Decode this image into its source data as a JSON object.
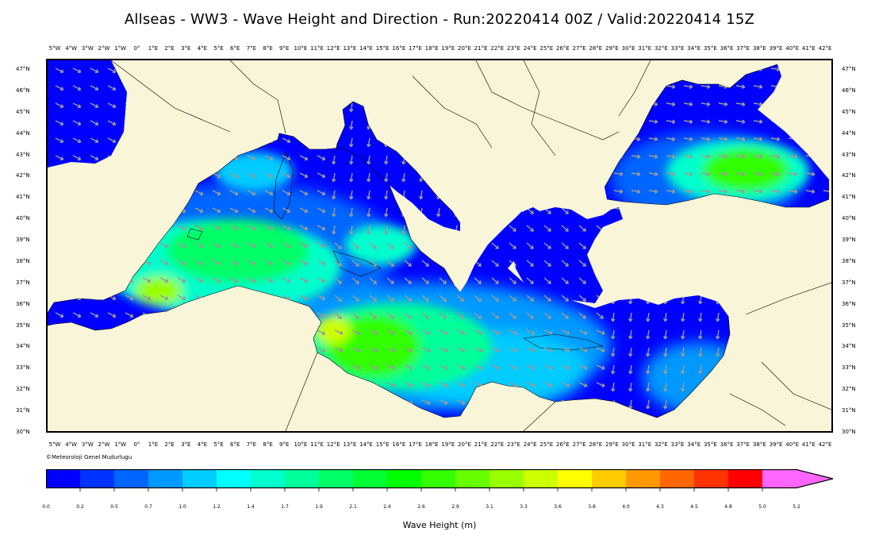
{
  "title": "Allseas - WW3 - Wave Height and Direction - Run:20220414 00Z / Valid:20220414 15Z",
  "credit": "©Meteoroloji Genel Mudurlugu",
  "lon_labels": [
    "5°W",
    "4°W",
    "3°W",
    "2°W",
    "1°W",
    "0°",
    "1°E",
    "2°E",
    "3°E",
    "4°E",
    "5°E",
    "6°E",
    "7°E",
    "8°E",
    "9°E",
    "10°E",
    "11°E",
    "12°E",
    "13°E",
    "14°E",
    "15°E",
    "16°E",
    "17°E",
    "18°E",
    "19°E",
    "20°E",
    "21°E",
    "22°E",
    "23°E",
    "24°E",
    "25°E",
    "26°E",
    "27°E",
    "28°E",
    "29°E",
    "30°E",
    "31°E",
    "32°E",
    "33°E",
    "34°E",
    "35°E",
    "36°E",
    "37°E",
    "38°E",
    "39°E",
    "40°E",
    "41°E",
    "42°E"
  ],
  "lat_labels": [
    "47°N",
    "46°N",
    "45°N",
    "44°N",
    "43°N",
    "42°N",
    "41°N",
    "40°N",
    "39°N",
    "38°N",
    "37°N",
    "36°N",
    "35°N",
    "34°N",
    "33°N",
    "32°N",
    "31°N",
    "30°N"
  ],
  "colorbar": {
    "title": "Wave Height (m)",
    "labels": [
      "0.0",
      "0.2",
      "0.5",
      "0.7",
      "1.0",
      "1.2",
      "1.4",
      "1.7",
      "1.9",
      "2.1",
      "2.4",
      "2.6",
      "2.9",
      "3.1",
      "3.3",
      "3.6",
      "3.8",
      "4.0",
      "4.3",
      "4.5",
      "4.8",
      "5.0",
      "5.2"
    ],
    "colors": [
      "#0000ff",
      "#0033ff",
      "#0066ff",
      "#0099ff",
      "#00ccff",
      "#00ffff",
      "#00ffcc",
      "#00ff99",
      "#00ff66",
      "#00ff33",
      "#00ff00",
      "#33ff00",
      "#66ff00",
      "#99ff00",
      "#ccff00",
      "#ffff00",
      "#ffcc00",
      "#ff9900",
      "#ff6600",
      "#ff3300",
      "#ff0000",
      "#ff66ff"
    ]
  },
  "colors": {
    "land": "#f8f5d8",
    "arrow": "#9a9a9a"
  }
}
